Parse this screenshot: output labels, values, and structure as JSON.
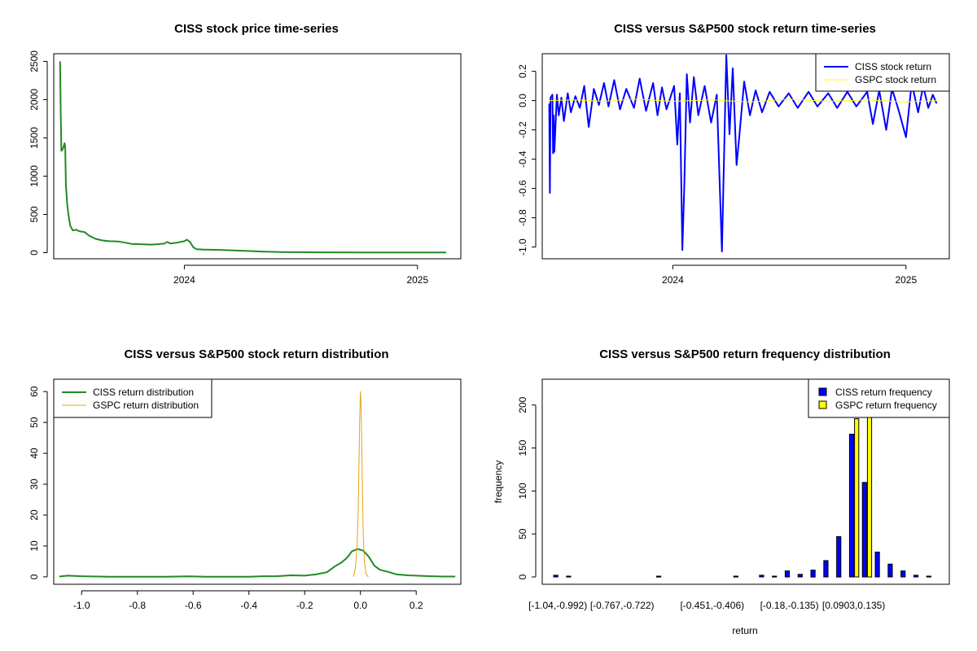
{
  "chart_data": [
    {
      "type": "line",
      "title": "CISS stock price time-series",
      "xlabel": "",
      "ylabel": "",
      "x_axis": "date",
      "xlim": [
        "2023-06-10",
        "2025-03-10"
      ],
      "ylim": [
        -80,
        2600
      ],
      "x_ticks": [
        {
          "value": "2024-01-01",
          "label": "2024"
        },
        {
          "value": "2025-01-01",
          "label": "2025"
        }
      ],
      "y_ticks": [
        0,
        500,
        1000,
        1500,
        2000,
        2500
      ],
      "y_tick_labels": [
        "0",
        "500",
        "1000",
        "1500",
        "2000",
        "2500"
      ],
      "series": [
        {
          "color": "#228B22",
          "points": [
            [
              "2023-06-20",
              2500
            ],
            [
              "2023-06-21",
              1800
            ],
            [
              "2023-06-22",
              1330
            ],
            [
              "2023-06-24",
              1350
            ],
            [
              "2023-06-26",
              1400
            ],
            [
              "2023-06-27",
              1430
            ],
            [
              "2023-06-28",
              1380
            ],
            [
              "2023-06-29",
              900
            ],
            [
              "2023-07-01",
              650
            ],
            [
              "2023-07-03",
              500
            ],
            [
              "2023-07-06",
              350
            ],
            [
              "2023-07-10",
              290
            ],
            [
              "2023-07-15",
              300
            ],
            [
              "2023-07-20",
              280
            ],
            [
              "2023-07-28",
              270
            ],
            [
              "2023-08-05",
              220
            ],
            [
              "2023-08-15",
              180
            ],
            [
              "2023-08-25",
              160
            ],
            [
              "2023-09-05",
              150
            ],
            [
              "2023-09-20",
              145
            ],
            [
              "2023-10-01",
              130
            ],
            [
              "2023-10-10",
              115
            ],
            [
              "2023-10-25",
              110
            ],
            [
              "2023-11-10",
              105
            ],
            [
              "2023-11-20",
              110
            ],
            [
              "2023-12-01",
              120
            ],
            [
              "2023-12-05",
              140
            ],
            [
              "2023-12-10",
              120
            ],
            [
              "2023-12-20",
              130
            ],
            [
              "2024-01-01",
              150
            ],
            [
              "2024-01-05",
              170
            ],
            [
              "2024-01-10",
              140
            ],
            [
              "2024-01-15",
              70
            ],
            [
              "2024-01-20",
              45
            ],
            [
              "2024-02-01",
              40
            ],
            [
              "2024-03-01",
              35
            ],
            [
              "2024-04-01",
              25
            ],
            [
              "2024-05-01",
              15
            ],
            [
              "2024-06-01",
              8
            ],
            [
              "2024-08-01",
              4
            ],
            [
              "2024-10-01",
              3
            ],
            [
              "2025-01-01",
              2
            ],
            [
              "2025-02-15",
              2
            ]
          ]
        }
      ]
    },
    {
      "type": "line",
      "title": "CISS versus S&P500 stock return time-series",
      "xlabel": "",
      "ylabel": "",
      "x_axis": "date",
      "xlim": [
        "2023-06-10",
        "2025-03-10"
      ],
      "ylim": [
        -1.08,
        0.32
      ],
      "x_ticks": [
        {
          "value": "2024-01-01",
          "label": "2024"
        },
        {
          "value": "2025-01-01",
          "label": "2025"
        }
      ],
      "y_ticks": [
        0.2,
        0.0,
        -0.2,
        -0.4,
        -0.6,
        -0.8,
        -1.0
      ],
      "y_tick_labels": [
        "0.2",
        "0.0",
        "-0.2",
        "-0.4",
        "-0.6",
        "-0.8",
        "-1.0"
      ],
      "legend": {
        "position": "top-right"
      },
      "series": [
        {
          "name": "CISS stock return",
          "color": "#0000FF",
          "points": [
            [
              "2023-06-21",
              -0.02
            ],
            [
              "2023-06-22",
              -0.63
            ],
            [
              "2023-06-23",
              0.02
            ],
            [
              "2023-06-26",
              0.04
            ],
            [
              "2023-06-27",
              -0.36
            ],
            [
              "2023-06-28",
              -0.1
            ],
            [
              "2023-06-29",
              -0.35
            ],
            [
              "2023-07-03",
              0.04
            ],
            [
              "2023-07-06",
              -0.1
            ],
            [
              "2023-07-10",
              0.02
            ],
            [
              "2023-07-14",
              -0.14
            ],
            [
              "2023-07-20",
              0.05
            ],
            [
              "2023-07-25",
              -0.08
            ],
            [
              "2023-08-01",
              0.03
            ],
            [
              "2023-08-08",
              -0.05
            ],
            [
              "2023-08-15",
              0.1
            ],
            [
              "2023-08-22",
              -0.18
            ],
            [
              "2023-08-30",
              0.08
            ],
            [
              "2023-09-07",
              -0.03
            ],
            [
              "2023-09-15",
              0.12
            ],
            [
              "2023-09-22",
              -0.04
            ],
            [
              "2023-10-01",
              0.14
            ],
            [
              "2023-10-10",
              -0.06
            ],
            [
              "2023-10-20",
              0.08
            ],
            [
              "2023-11-01",
              -0.05
            ],
            [
              "2023-11-10",
              0.15
            ],
            [
              "2023-11-20",
              -0.07
            ],
            [
              "2023-12-01",
              0.12
            ],
            [
              "2023-12-08",
              -0.1
            ],
            [
              "2023-12-15",
              0.09
            ],
            [
              "2023-12-22",
              -0.06
            ],
            [
              "2024-01-03",
              0.1
            ],
            [
              "2024-01-08",
              -0.3
            ],
            [
              "2024-01-12",
              0.05
            ],
            [
              "2024-01-16",
              -1.02
            ],
            [
              "2024-01-19",
              -0.58
            ],
            [
              "2024-01-23",
              0.18
            ],
            [
              "2024-01-28",
              -0.15
            ],
            [
              "2024-02-03",
              0.16
            ],
            [
              "2024-02-10",
              -0.1
            ],
            [
              "2024-02-20",
              0.1
            ],
            [
              "2024-03-01",
              -0.15
            ],
            [
              "2024-03-10",
              0.04
            ],
            [
              "2024-03-18",
              -1.03
            ],
            [
              "2024-03-20",
              -0.66
            ],
            [
              "2024-03-25",
              0.31
            ],
            [
              "2024-03-30",
              -0.23
            ],
            [
              "2024-04-04",
              0.22
            ],
            [
              "2024-04-10",
              -0.44
            ],
            [
              "2024-04-14",
              -0.26
            ],
            [
              "2024-04-22",
              0.13
            ],
            [
              "2024-05-01",
              -0.1
            ],
            [
              "2024-05-10",
              0.07
            ],
            [
              "2024-05-20",
              -0.08
            ],
            [
              "2024-06-01",
              0.06
            ],
            [
              "2024-06-15",
              -0.04
            ],
            [
              "2024-07-01",
              0.05
            ],
            [
              "2024-07-15",
              -0.05
            ],
            [
              "2024-08-01",
              0.06
            ],
            [
              "2024-08-15",
              -0.04
            ],
            [
              "2024-09-01",
              0.05
            ],
            [
              "2024-09-15",
              -0.05
            ],
            [
              "2024-10-01",
              0.06
            ],
            [
              "2024-10-15",
              -0.04
            ],
            [
              "2024-11-01",
              0.06
            ],
            [
              "2024-11-10",
              -0.16
            ],
            [
              "2024-11-20",
              0.07
            ],
            [
              "2024-12-01",
              -0.2
            ],
            [
              "2024-12-10",
              0.08
            ],
            [
              "2024-12-20",
              -0.06
            ],
            [
              "2025-01-01",
              -0.25
            ],
            [
              "2025-01-10",
              0.12
            ],
            [
              "2025-01-20",
              -0.08
            ],
            [
              "2025-01-28",
              0.1
            ],
            [
              "2025-02-05",
              -0.05
            ],
            [
              "2025-02-12",
              0.04
            ],
            [
              "2025-02-18",
              -0.02
            ]
          ]
        },
        {
          "name": "GSPC stock return",
          "color": "#FFFF00",
          "points": [
            [
              "2023-06-21",
              0.0
            ],
            [
              "2023-08-01",
              0.005
            ],
            [
              "2023-09-15",
              -0.005
            ],
            [
              "2023-11-01",
              0.01
            ],
            [
              "2024-01-01",
              -0.005
            ],
            [
              "2024-03-01",
              0.005
            ],
            [
              "2024-05-01",
              -0.01
            ],
            [
              "2024-07-01",
              0.01
            ],
            [
              "2024-09-01",
              -0.005
            ],
            [
              "2024-11-01",
              0.005
            ],
            [
              "2025-01-01",
              -0.01
            ],
            [
              "2025-02-18",
              0.0
            ]
          ]
        }
      ]
    },
    {
      "type": "line",
      "title": "CISS versus S&P500 stock return distribution",
      "xlabel": "",
      "ylabel": "",
      "xlim": [
        -1.1,
        0.36
      ],
      "ylim": [
        -2.4,
        64
      ],
      "x_ticks": [
        -1.0,
        -0.8,
        -0.6,
        -0.4,
        -0.2,
        0.0,
        0.2
      ],
      "x_tick_labels": [
        "-1.0",
        "-0.8",
        "-0.6",
        "-0.4",
        "-0.2",
        "0.0",
        "0.2"
      ],
      "y_ticks": [
        0,
        10,
        20,
        30,
        40,
        50,
        60
      ],
      "y_tick_labels": [
        "0",
        "10",
        "20",
        "30",
        "40",
        "50",
        "60"
      ],
      "legend": {
        "position": "top-left"
      },
      "series": [
        {
          "name": "CISS return distribution",
          "color": "#228B22",
          "points": [
            [
              -1.08,
              0.1
            ],
            [
              -1.05,
              0.4
            ],
            [
              -1.0,
              0.2
            ],
            [
              -0.9,
              0.05
            ],
            [
              -0.7,
              0.05
            ],
            [
              -0.62,
              0.15
            ],
            [
              -0.55,
              0.05
            ],
            [
              -0.4,
              0.05
            ],
            [
              -0.35,
              0.2
            ],
            [
              -0.3,
              0.2
            ],
            [
              -0.25,
              0.5
            ],
            [
              -0.2,
              0.4
            ],
            [
              -0.16,
              0.8
            ],
            [
              -0.12,
              1.5
            ],
            [
              -0.09,
              3.5
            ],
            [
              -0.07,
              4.5
            ],
            [
              -0.05,
              6
            ],
            [
              -0.03,
              8.3
            ],
            [
              -0.01,
              9.0
            ],
            [
              0.01,
              8.5
            ],
            [
              0.03,
              6.5
            ],
            [
              0.05,
              3.6
            ],
            [
              0.07,
              2.3
            ],
            [
              0.1,
              1.6
            ],
            [
              0.13,
              0.8
            ],
            [
              0.17,
              0.5
            ],
            [
              0.2,
              0.4
            ],
            [
              0.25,
              0.2
            ],
            [
              0.3,
              0.1
            ],
            [
              0.34,
              0.1
            ]
          ]
        },
        {
          "name": "GSPC return distribution",
          "color": "#E8A317",
          "points": [
            [
              -0.025,
              0.0
            ],
            [
              -0.018,
              3
            ],
            [
              -0.012,
              10
            ],
            [
              -0.008,
              22
            ],
            [
              -0.005,
              38
            ],
            [
              -0.003,
              50
            ],
            [
              -0.001,
              58
            ],
            [
              0.0,
              60
            ],
            [
              0.002,
              57
            ],
            [
              0.004,
              46
            ],
            [
              0.007,
              30
            ],
            [
              0.01,
              14
            ],
            [
              0.014,
              5
            ],
            [
              0.02,
              1
            ],
            [
              0.028,
              0.0
            ]
          ]
        }
      ]
    },
    {
      "type": "bar",
      "title": "CISS versus S&P500 return frequency distribution",
      "xlabel": "return",
      "ylabel": "frequency",
      "ylim": [
        -8.5,
        230
      ],
      "y_ticks": [
        0,
        50,
        100,
        150,
        200
      ],
      "y_tick_labels": [
        "0",
        "50",
        "100",
        "150",
        "200"
      ],
      "legend": {
        "position": "top-right"
      },
      "x_tick_labels": [
        {
          "bin": 0,
          "label": "[-1.04,-0.992)"
        },
        {
          "bin": 5,
          "label": "[-0.767,-0.722)"
        },
        {
          "bin": 12,
          "label": "[-0.451,-0.406)"
        },
        {
          "bin": 18,
          "label": "[-0.18,-0.135)"
        },
        {
          "bin": 23,
          "label": "[0.0903,0.135)"
        }
      ],
      "categories_count": 30,
      "series": [
        {
          "name": "CISS return frequency",
          "color": "#0000FF",
          "values": [
            2,
            1,
            0,
            0,
            0,
            0,
            0,
            0,
            1,
            0,
            0,
            0,
            0,
            0,
            1,
            0,
            2,
            1,
            7,
            3,
            8,
            19,
            47,
            166,
            110,
            29,
            15,
            7,
            2,
            1
          ]
        },
        {
          "name": "GSPC return frequency",
          "color": "#FFFF00",
          "values": [
            0,
            0,
            0,
            0,
            0,
            0,
            0,
            0,
            0,
            0,
            0,
            0,
            0,
            0,
            0,
            0,
            0,
            0,
            0,
            0,
            0,
            0,
            0,
            184,
            200,
            0,
            0,
            0,
            0,
            0
          ]
        }
      ]
    }
  ]
}
